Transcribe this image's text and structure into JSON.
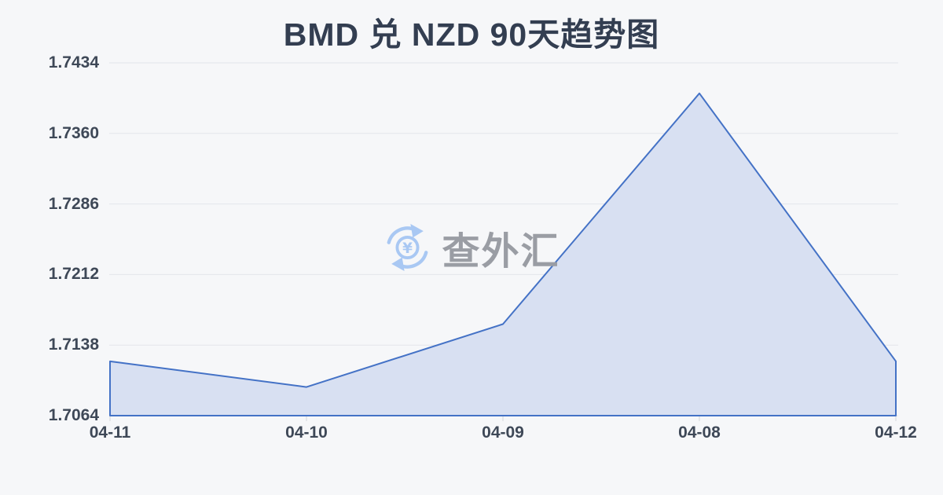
{
  "title": "BMD 兑 NZD 90天趋势图",
  "watermark": {
    "icon": "currency-exchange-icon",
    "symbol": "¥",
    "text": "查外汇"
  },
  "colors": {
    "background": "#f6f7f9",
    "title": "#333e51",
    "axis_label": "#3e4857",
    "grid": "#e3e6eb",
    "line": "#4472c6",
    "fill": "#d8e0f2",
    "tick": "#d4d7dc",
    "watermark_icon": "#a9c8f3",
    "watermark_text": "#9a9da4"
  },
  "chart_data": {
    "type": "area",
    "title": "BMD 兑 NZD 90天趋势图",
    "series_name": "BMD/NZD",
    "categories": [
      "04-11",
      "04-10",
      "04-09",
      "04-08",
      "04-12"
    ],
    "values": [
      1.7121,
      1.7094,
      1.716,
      1.7402,
      1.7121
    ],
    "xlabel": "",
    "ylabel": "",
    "ylim": [
      1.7064,
      1.7434
    ],
    "yticks": [
      1.7064,
      1.7138,
      1.7212,
      1.7286,
      1.736,
      1.7434
    ],
    "ytick_labels": [
      "1.7064",
      "1.7138",
      "1.7212",
      "1.7286",
      "1.7360",
      "1.7434"
    ],
    "grid": true,
    "legend": false,
    "legend_position": "none"
  }
}
